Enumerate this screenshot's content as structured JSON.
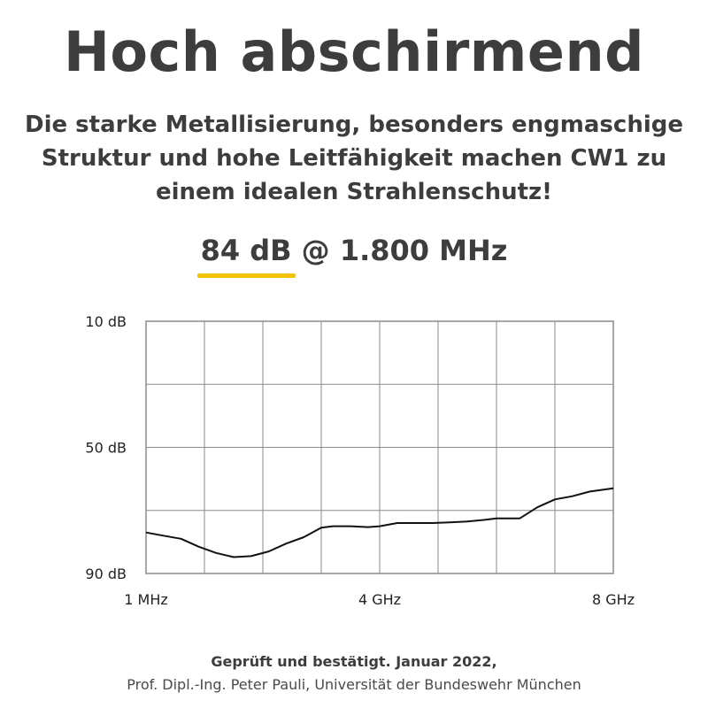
{
  "title": "Hoch abschirmend",
  "subtitle": "Die starke Metallisierung, besonders engmaschige Struktur und hohe Leitfähigkeit machen CW1 zu einem idealen Strahlenschutz!",
  "highlight": {
    "value": "84 dB",
    "rest": " @ 1.800 MHz",
    "underline_color": "#f5c400"
  },
  "chart_data": {
    "type": "line",
    "title": "",
    "xlabel": "",
    "ylabel": "",
    "x_tick_labels": [
      "1 MHz",
      "4 GHz",
      "8 GHz"
    ],
    "y_tick_labels": [
      "10 dB",
      "50 dB",
      "90 dB"
    ],
    "y_ticks": [
      10,
      50,
      90
    ],
    "ylim": [
      10,
      90
    ],
    "y_inverted": true,
    "x_grid_divisions": 8,
    "y_grid_divisions": 4,
    "grid": true,
    "line_color": "#111111",
    "series": [
      {
        "x": [
          0.0,
          0.3,
          0.6,
          0.9,
          1.2,
          1.5,
          1.8,
          2.1,
          2.4,
          2.7,
          3.0,
          3.2,
          3.5,
          3.8,
          4.0,
          4.3,
          4.6,
          4.9,
          5.2,
          5.5,
          5.8,
          6.0,
          6.4,
          6.7,
          7.0,
          7.3,
          7.6,
          8.0
        ],
        "y": [
          77,
          78,
          79,
          81.5,
          83.5,
          84.8,
          84.5,
          83,
          80.5,
          78.5,
          75.5,
          75,
          75,
          75.3,
          75,
          74,
          74,
          74,
          73.8,
          73.5,
          73,
          72.5,
          72.5,
          69,
          66.5,
          65.5,
          64,
          63
        ]
      }
    ]
  },
  "footer": {
    "line1": "Geprüft und bestätigt. Januar 2022,",
    "line2": "Prof. Dipl.-Ing. Peter Pauli, Universität der Bundeswehr München"
  }
}
